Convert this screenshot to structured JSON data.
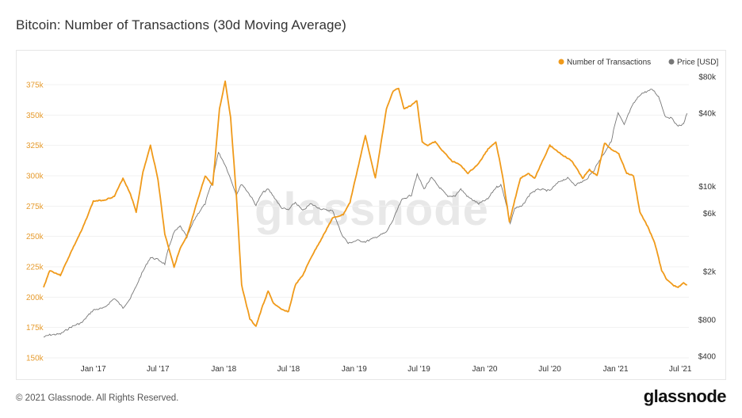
{
  "title": "Bitcoin: Number of Transactions (30d Moving Average)",
  "copyright": "© 2021 Glassnode. All Rights Reserved.",
  "brand": "glassnode",
  "watermark": "glassnode",
  "colors": {
    "transactions": "#f09a1a",
    "price": "#777777"
  },
  "chart_data": {
    "type": "line",
    "title": "Bitcoin: Number of Transactions (30d Moving Average)",
    "legend_position": "top-right",
    "x_ticks": [
      "Jan '17",
      "Jul '17",
      "Jan '18",
      "Jul '18",
      "Jan '19",
      "Jul '19",
      "Jan '20",
      "Jul '20",
      "Jan '21",
      "Jul '21"
    ],
    "y_left": {
      "ticks": [
        "150k",
        "175k",
        "200k",
        "225k",
        "250k",
        "275k",
        "300k",
        "325k",
        "350k",
        "375k"
      ],
      "range": [
        150000,
        390000
      ]
    },
    "y_right": {
      "scale": "log",
      "ticks": [
        "$400",
        "$800",
        "$2k",
        "$6k",
        "$10k",
        "$40k",
        "$80k"
      ],
      "tick_values": [
        400,
        800,
        2000,
        6000,
        10000,
        40000,
        80000
      ],
      "range": [
        400,
        80000
      ]
    },
    "x_range": [
      "2016-08-15",
      "2021-07-25"
    ],
    "series": [
      {
        "name": "Number of Transactions",
        "axis": "left",
        "color": "#f09a1a",
        "x": [
          "2016-08-15",
          "2016-09-01",
          "2016-10-01",
          "2016-11-01",
          "2016-12-01",
          "2017-01-01",
          "2017-02-01",
          "2017-03-01",
          "2017-03-25",
          "2017-04-15",
          "2017-05-01",
          "2017-05-20",
          "2017-06-10",
          "2017-07-01",
          "2017-07-20",
          "2017-08-15",
          "2017-09-01",
          "2017-09-20",
          "2017-10-15",
          "2017-11-10",
          "2017-12-01",
          "2017-12-20",
          "2018-01-05",
          "2018-01-20",
          "2018-02-05",
          "2018-02-20",
          "2018-03-15",
          "2018-04-01",
          "2018-04-20",
          "2018-05-05",
          "2018-05-20",
          "2018-06-10",
          "2018-07-01",
          "2018-07-20",
          "2018-08-10",
          "2018-09-01",
          "2018-10-01",
          "2018-11-01",
          "2018-12-01",
          "2018-12-20",
          "2019-01-10",
          "2019-02-01",
          "2019-03-01",
          "2019-04-01",
          "2019-04-20",
          "2019-05-05",
          "2019-05-20",
          "2019-06-10",
          "2019-06-25",
          "2019-07-10",
          "2019-07-25",
          "2019-08-15",
          "2019-09-01",
          "2019-10-01",
          "2019-10-20",
          "2019-11-15",
          "2019-12-15",
          "2020-01-10",
          "2020-02-01",
          "2020-02-20",
          "2020-03-10",
          "2020-03-25",
          "2020-04-10",
          "2020-05-01",
          "2020-05-20",
          "2020-06-10",
          "2020-07-01",
          "2020-08-01",
          "2020-09-01",
          "2020-10-01",
          "2020-10-20",
          "2020-11-10",
          "2020-12-01",
          "2020-12-20",
          "2021-01-10",
          "2021-02-01",
          "2021-02-20",
          "2021-03-10",
          "2021-04-01",
          "2021-04-20",
          "2021-05-10",
          "2021-05-25",
          "2021-06-10",
          "2021-06-25",
          "2021-07-10",
          "2021-07-20"
        ],
        "values": [
          208000,
          222000,
          218000,
          238000,
          256000,
          279000,
          280000,
          283000,
          298000,
          285000,
          270000,
          303000,
          325000,
          297000,
          252000,
          225000,
          240000,
          250000,
          275000,
          300000,
          292000,
          355000,
          378000,
          348000,
          285000,
          210000,
          182000,
          176000,
          193000,
          205000,
          195000,
          190000,
          188000,
          210000,
          218000,
          232000,
          248000,
          265000,
          268000,
          278000,
          305000,
          333000,
          298000,
          355000,
          370000,
          372000,
          355000,
          358000,
          362000,
          328000,
          325000,
          328000,
          322000,
          312000,
          310000,
          302000,
          310000,
          322000,
          328000,
          300000,
          262000,
          280000,
          298000,
          302000,
          298000,
          312000,
          325000,
          318000,
          312000,
          298000,
          305000,
          300000,
          327000,
          322000,
          318000,
          302000,
          300000,
          270000,
          258000,
          245000,
          222000,
          214000,
          210000,
          208000,
          212000,
          210000
        ]
      },
      {
        "name": "Price [USD]",
        "axis": "right",
        "color": "#777777",
        "x": [
          "2016-08-15",
          "2016-09-01",
          "2016-10-01",
          "2016-11-01",
          "2016-12-01",
          "2017-01-01",
          "2017-02-01",
          "2017-03-01",
          "2017-03-25",
          "2017-04-15",
          "2017-05-01",
          "2017-05-20",
          "2017-06-10",
          "2017-07-01",
          "2017-07-20",
          "2017-08-15",
          "2017-09-01",
          "2017-09-20",
          "2017-10-15",
          "2017-11-10",
          "2017-12-01",
          "2017-12-17",
          "2018-01-05",
          "2018-01-20",
          "2018-02-05",
          "2018-02-20",
          "2018-03-15",
          "2018-04-01",
          "2018-04-20",
          "2018-05-05",
          "2018-05-20",
          "2018-06-10",
          "2018-07-01",
          "2018-07-20",
          "2018-08-10",
          "2018-09-01",
          "2018-10-01",
          "2018-11-01",
          "2018-11-25",
          "2018-12-15",
          "2019-01-10",
          "2019-02-01",
          "2019-03-01",
          "2019-04-01",
          "2019-04-20",
          "2019-05-15",
          "2019-06-10",
          "2019-06-26",
          "2019-07-15",
          "2019-08-05",
          "2019-08-25",
          "2019-09-20",
          "2019-10-10",
          "2019-10-26",
          "2019-11-15",
          "2019-12-15",
          "2020-01-10",
          "2020-02-01",
          "2020-02-15",
          "2020-03-12",
          "2020-03-25",
          "2020-04-15",
          "2020-05-10",
          "2020-06-01",
          "2020-07-01",
          "2020-07-28",
          "2020-08-20",
          "2020-09-10",
          "2020-10-10",
          "2020-11-01",
          "2020-12-01",
          "2020-12-20",
          "2021-01-08",
          "2021-01-25",
          "2021-02-20",
          "2021-03-13",
          "2021-04-14",
          "2021-05-01",
          "2021-05-19",
          "2021-06-10",
          "2021-06-22",
          "2021-07-10",
          "2021-07-20"
        ],
        "values": [
          575,
          600,
          610,
          700,
          760,
          960,
          1000,
          1200,
          1000,
          1200,
          1500,
          2000,
          2600,
          2500,
          2300,
          4200,
          4700,
          3800,
          5600,
          7200,
          11000,
          19000,
          15000,
          11500,
          8500,
          10500,
          8500,
          7000,
          8900,
          9500,
          8300,
          6700,
          6400,
          7400,
          6300,
          7200,
          6500,
          6300,
          4100,
          3400,
          3600,
          3500,
          3800,
          4200,
          5300,
          7800,
          8500,
          12500,
          9500,
          11800,
          10000,
          8200,
          8400,
          9500,
          8200,
          7200,
          7900,
          9800,
          10300,
          4900,
          6600,
          6900,
          8900,
          9500,
          9200,
          11000,
          11700,
          10300,
          11300,
          13500,
          19000,
          23500,
          40000,
          32000,
          48000,
          58000,
          63000,
          55000,
          38000,
          36000,
          31500,
          32500,
          40000
        ]
      }
    ]
  }
}
